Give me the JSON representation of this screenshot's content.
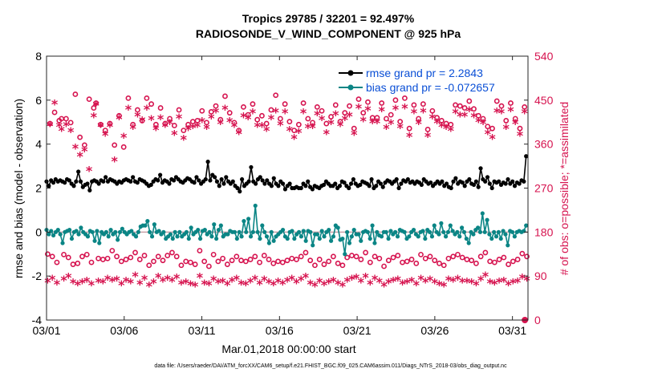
{
  "chart_data": {
    "type": "line",
    "title_line1": "Tropics 29785 / 32201 = 92.497%",
    "title_line2": "RADIOSONDE_V_WIND_COMPONENT @ 925 hPa",
    "xlabel": "Mar.01,2018 00:00:00 start",
    "ylabel_left": "rmse and bias (model - observation)",
    "ylabel_right": "# of obs: o=possible; *=assimilated",
    "x_ticks": [
      "03/01",
      "03/06",
      "03/11",
      "03/16",
      "03/21",
      "03/26",
      "03/31"
    ],
    "x_tick_days": [
      1,
      6,
      11,
      16,
      21,
      26,
      31
    ],
    "x_range_days": [
      1,
      32
    ],
    "y_left_ticks": [
      "-4",
      "-2",
      "0",
      "2",
      "4",
      "6",
      "8"
    ],
    "y_left_range": [
      -4,
      8
    ],
    "y_right_ticks": [
      "0",
      "90",
      "180",
      "270",
      "360",
      "450",
      "540"
    ],
    "y_right_range": [
      0,
      540
    ],
    "zero_line": 0,
    "legend": [
      {
        "label": "rmse grand pr = 2.2843",
        "color": "#000000"
      },
      {
        "label": "bias grand pr = -0.072657",
        "color": "#0a8585"
      }
    ],
    "series": [
      {
        "name": "rmse",
        "color": "#000000",
        "values": [
          2.3,
          2.1,
          2.35,
          2.25,
          2.4,
          2.3,
          2.35,
          2.3,
          2.25,
          2.4,
          2.35,
          2.2,
          2.1,
          2.3,
          2.75,
          2.3,
          2.05,
          2.15,
          2.2,
          1.9,
          2.3,
          2.35,
          2.3,
          2.2,
          2.35,
          2.3,
          2.5,
          2.3,
          2.4,
          2.35,
          2.3,
          2.2,
          2.3,
          2.25,
          2.35,
          2.4,
          2.35,
          2.3,
          2.5,
          2.3,
          2.25,
          2.4,
          2.35,
          2.3,
          2.2,
          2.1,
          2.15,
          2.3,
          2.4,
          2.35,
          2.6,
          2.25,
          2.35,
          2.3,
          2.2,
          2.4,
          2.35,
          2.5,
          2.4,
          2.3,
          2.25,
          2.35,
          2.45,
          2.4,
          2.3,
          2.25,
          2.5,
          2.35,
          2.2,
          2.3,
          2.4,
          3.2,
          2.35,
          2.6,
          2.5,
          2.3,
          2.1,
          2.4,
          2.2,
          2.5,
          2.3,
          2.2,
          2.3,
          2.1,
          2.0,
          1.85,
          2.4,
          2.1,
          2.2,
          2.3,
          2.95,
          2.3,
          2.2,
          2.4,
          2.5,
          2.35,
          2.2,
          2.35,
          2.2,
          2.1,
          2.45,
          2.2,
          2.1,
          2.3,
          2.2,
          1.95,
          2.1,
          2.2,
          2.0,
          2.0,
          2.05,
          2.0,
          2.0,
          2.2,
          2.1,
          2.3,
          2.05,
          1.95,
          2.1,
          2.05,
          2.0,
          2.1,
          2.15,
          2.3,
          2.2,
          2.1,
          2.1,
          2.2,
          2.0,
          2.1,
          2.3,
          2.25,
          2.1,
          2.0,
          2.2,
          2.4,
          2.2,
          2.1,
          2.15,
          2.3,
          2.25,
          2.2,
          2.1,
          2.4,
          2.0,
          2.1,
          2.3,
          2.2,
          2.05,
          2.25,
          2.35,
          2.3,
          2.2,
          2.3,
          2.4,
          2.0,
          2.2,
          2.35,
          2.3,
          2.4,
          2.25,
          2.3,
          2.2,
          2.3,
          2.25,
          2.15,
          2.4,
          2.3,
          2.2,
          2.25,
          2.1,
          2.2,
          2.3,
          2.2,
          2.3,
          2.1,
          2.2,
          2.05,
          2.0,
          2.3,
          2.45,
          2.2,
          2.3,
          2.25,
          2.1,
          2.3,
          2.4,
          2.2,
          2.15,
          2.3,
          2.05,
          2.9,
          2.4,
          2.3,
          2.5,
          2.2,
          2.0,
          2.3,
          2.25,
          2.3,
          2.15,
          2.25,
          2.2,
          2.4,
          2.2,
          2.3,
          2.1,
          2.25,
          2.2,
          2.35,
          2.3,
          3.45
        ]
      },
      {
        "name": "bias",
        "color": "#0a8585",
        "values": [
          0.1,
          -0.1,
          0.05,
          -0.15,
          0.0,
          0.1,
          -0.1,
          -0.5,
          0.0,
          0.05,
          0.1,
          -0.3,
          0.0,
          0.05,
          -0.1,
          0.2,
          0.0,
          -0.1,
          -0.2,
          0.05,
          0.0,
          -0.4,
          0.05,
          -0.5,
          0.0,
          -0.1,
          0.0,
          -0.2,
          0.1,
          -0.1,
          0.0,
          -0.35,
          0.0,
          0.15,
          0.0,
          -0.1,
          0.0,
          0.05,
          -0.1,
          -0.2,
          0.0,
          0.25,
          0.3,
          0.3,
          0.5,
          0.0,
          -0.2,
          0.35,
          0.0,
          0.05,
          -0.1,
          0.0,
          -0.3,
          -0.2,
          -0.1,
          -0.3,
          0.0,
          -0.2,
          0.0,
          -0.2,
          -0.1,
          0.0,
          -0.3,
          0.2,
          -0.1,
          0.0,
          0.1,
          -0.3,
          0.05,
          0.1,
          -0.1,
          0.0,
          -0.2,
          0.35,
          -0.3,
          0.1,
          0.3,
          -0.2,
          -0.1,
          -0.1,
          0.05,
          0.0,
          0.0,
          -0.3,
          0.0,
          -0.2,
          0.5,
          0.0,
          0.6,
          -0.2,
          0.0,
          1.2,
          0.0,
          -0.3,
          0.3,
          0.0,
          -0.2,
          -0.5,
          0.0,
          -0.4,
          -0.2,
          -0.1,
          0.0,
          0.1,
          -0.2,
          -0.3,
          0.0,
          0.05,
          -0.3,
          -0.1,
          0.0,
          -0.2,
          0.05,
          -0.4,
          0.05,
          0.0,
          -0.6,
          -0.1,
          -0.1,
          -0.3,
          0.05,
          -0.2,
          0.0,
          0.1,
          -0.4,
          -0.2,
          0.3,
          0.2,
          -0.35,
          -0.3,
          -1.0,
          0.0,
          -0.5,
          -0.2,
          0.1,
          -0.1,
          -0.1,
          -0.4,
          0.0,
          0.05,
          0.0,
          -0.3,
          0.3,
          -0.5,
          0.0,
          -0.15,
          -0.2,
          0.0,
          0.0,
          -0.3,
          0.05,
          -0.1,
          0.0,
          -0.2,
          0.1,
          0.05,
          0.0,
          -0.3,
          -0.2,
          0.0,
          0.1,
          -0.1,
          -0.2,
          0.0,
          0.05,
          -0.3,
          0.1,
          0.0,
          -0.2,
          0.3,
          0.0,
          -0.1,
          0.4,
          0.0,
          -0.2,
          0.0,
          0.3,
          0.05,
          -0.1,
          0.0,
          -0.2,
          0.2,
          0.0,
          -0.3,
          -0.5,
          0.0,
          -0.1,
          0.1,
          0.2,
          0.0,
          0.85,
          0.0,
          0.55,
          -0.1,
          -0.3,
          0.0,
          -0.2,
          0.0,
          -0.3,
          0.05,
          -0.1,
          -0.6,
          0.05,
          0.0,
          -0.2,
          0.0,
          0.05,
          0.0,
          0.05,
          0.3
        ]
      },
      {
        "name": "possible",
        "color": "#d6134f",
        "marker": "o",
        "values": [
          135,
          402,
          130,
          425,
          118,
          408,
          412,
          134,
          412,
          128,
          404,
          114,
          462,
          116,
          374,
          130,
          358,
          134,
          452,
          118,
          434,
          444,
          126,
          400,
          124,
          388,
          126,
          402,
          142,
          358,
          130,
          418,
          120,
          354,
          124,
          454,
          128,
          400,
          138,
          430,
          124,
          408,
          132,
          454,
          112,
          442,
          120,
          400,
          130,
          434,
          122,
          402,
          132,
          412,
          138,
          398,
          130,
          430,
          112,
          388,
          120,
          400,
          118,
          406,
          114,
          408,
          142,
          428,
          120,
          404,
          110,
          426,
          134,
          438,
          120,
          410,
          126,
          458,
          114,
          424,
          122,
          404,
          130,
          388,
          122,
          436,
          120,
          420,
          124,
          442,
          130,
          410,
          118,
          418,
          132,
          402,
          124,
          430,
          116,
          460,
          120,
          412,
          118,
          442,
          122,
          406,
          126,
          388,
          124,
          400,
          130,
          444,
          138,
          412,
          122,
          404,
          112,
          436,
          124,
          428,
          114,
          402,
          120,
          416,
          130,
          440,
          116,
          406,
          112,
          424,
          128,
          438,
          132,
          392,
          130,
          452,
          124,
          424,
          138,
          446,
          118,
          414,
          130,
          414,
          126,
          444,
          110,
          412,
          122,
          420,
          128,
          450,
          132,
          406,
          118,
          454,
          120,
          392,
          124,
          440,
          116,
          412,
          134,
          442,
          126,
          390,
          130,
          428,
          122,
          414,
          116,
          408,
          112,
          402,
          126,
          400,
          130,
          440,
          134,
          438,
          128,
          434,
          124,
          448,
          122,
          432,
          116,
          418,
          130,
          412,
          138,
          396,
          120,
          392,
          118,
          448,
          124,
          438,
          128,
          408,
          114,
          444,
          120,
          412,
          124,
          392,
          136,
          436,
          130
        ]
      },
      {
        "name": "assimilated",
        "color": "#d6134f",
        "marker": "*",
        "values": [
          78,
          398,
          84,
          442,
          74,
          396,
          388,
          82,
          398,
          88,
          386,
          76,
          352,
          72,
          336,
          76,
          346,
          80,
          306,
          72,
          416,
          440,
          78,
          396,
          76,
          378,
          84,
          396,
          80,
          326,
          82,
          412,
          72,
          374,
          80,
          432,
          76,
          392,
          90,
          418,
          74,
          408,
          84,
          432,
          70,
          410,
          76,
          390,
          88,
          412,
          80,
          396,
          84,
          402,
          80,
          380,
          86,
          414,
          74,
          370,
          76,
          390,
          72,
          394,
          70,
          396,
          88,
          406,
          74,
          392,
          72,
          414,
          82,
          426,
          76,
          402,
          78,
          432,
          72,
          406,
          80,
          396,
          84,
          382,
          74,
          416,
          72,
          412,
          78,
          424,
          84,
          396,
          74,
          396,
          82,
          388,
          76,
          412,
          72,
          426,
          78,
          400,
          74,
          424,
          80,
          388,
          84,
          372,
          76,
          384,
          82,
          424,
          88,
          394,
          74,
          394,
          70,
          420,
          78,
          410,
          72,
          382,
          76,
          402,
          80,
          420,
          74,
          398,
          70,
          410,
          80,
          418,
          84,
          380,
          86,
          434,
          78,
          408,
          88,
          430,
          74,
          404,
          84,
          404,
          78,
          428,
          70,
          392,
          76,
          402,
          80,
          432,
          82,
          394,
          74,
          434,
          76,
          376,
          80,
          424,
          72,
          402,
          84,
          426,
          78,
          376,
          82,
          414,
          76,
          404,
          72,
          396,
          70,
          392,
          82,
          388,
          80,
          424,
          84,
          418,
          78,
          418,
          78,
          428,
          76,
          416,
          72,
          406,
          82,
          402,
          90,
          382,
          76,
          372,
          74,
          426,
          78,
          424,
          80,
          392,
          72,
          428,
          76,
          402,
          78,
          378,
          86,
          424,
          82
        ]
      },
      {
        "name": "possible-low",
        "color": "#d6134f",
        "marker": "o",
        "values": [
          0
        ]
      }
    ]
  },
  "footer": "data file: /Users/raeder/DAI/ATM_forcXX/CAM6_setup/f.e21.FHIST_BGC.f09_025.CAM6assim.011/Diags_NTrS_2018-03/obs_diag_output.nc"
}
